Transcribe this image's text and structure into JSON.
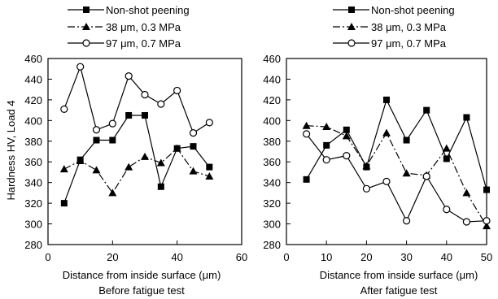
{
  "legend": [
    {
      "name": "Non-shot peening",
      "marker": "square-filled",
      "dash": "solid"
    },
    {
      "name": "38 μm,  0.3 MPa",
      "marker": "triangle-filled",
      "dash": "dashdot"
    },
    {
      "name": "97 μm,   0.7 MPa",
      "marker": "circle-open",
      "dash": "solid"
    }
  ],
  "y_axis_label": "Hardness  HV, Load  4",
  "chart_data": [
    {
      "type": "line",
      "caption": "Before fatigue test",
      "xlabel": "Distance from inside surface (μm)",
      "ylabel": "Hardness  HV, Load  4",
      "xlim": [
        0,
        60
      ],
      "ylim": [
        280,
        460
      ],
      "x_ticks": [
        0,
        20,
        40,
        60
      ],
      "y_ticks": [
        280,
        300,
        320,
        340,
        360,
        380,
        400,
        420,
        440,
        460
      ],
      "grid": false,
      "legend_position": "top",
      "series": [
        {
          "name": "Non-shot peening",
          "x": [
            5,
            10,
            15,
            20,
            25,
            30,
            35,
            40,
            45,
            50
          ],
          "y": [
            320,
            362,
            381,
            381,
            405,
            405,
            336,
            373,
            375,
            355
          ]
        },
        {
          "name": "38 μm,  0.3 MPa",
          "x": [
            5,
            10,
            15,
            20,
            25,
            30,
            35,
            40,
            45,
            50
          ],
          "y": [
            353,
            361,
            352,
            330,
            355,
            365,
            359,
            373,
            351,
            346
          ]
        },
        {
          "name": "97 μm,   0.7 MPa",
          "x": [
            5,
            10,
            15,
            20,
            25,
            30,
            35,
            40,
            45,
            50
          ],
          "y": [
            411,
            452,
            391,
            397,
            443,
            425,
            416,
            429,
            388,
            398
          ]
        }
      ]
    },
    {
      "type": "line",
      "caption": "After fatigue test",
      "xlabel": "Distance from inside surface (μm)",
      "ylabel": "",
      "xlim": [
        0,
        50
      ],
      "ylim": [
        280,
        460
      ],
      "x_ticks": [
        0,
        10,
        20,
        30,
        40,
        50
      ],
      "y_ticks": [
        280,
        300,
        320,
        340,
        360,
        380,
        400,
        420,
        440,
        460
      ],
      "grid": false,
      "legend_position": "top",
      "series": [
        {
          "name": "Non-shot peening",
          "x": [
            5,
            10,
            15,
            20,
            25,
            30,
            35,
            40,
            45,
            50
          ],
          "y": [
            343,
            376,
            391,
            355,
            420,
            381,
            410,
            363,
            403,
            333
          ]
        },
        {
          "name": "38 μm,  0.3 MPa",
          "x": [
            5,
            10,
            15,
            20,
            25,
            30,
            35,
            40,
            45,
            50
          ],
          "y": [
            395,
            394,
            385,
            356,
            388,
            349,
            347,
            373,
            330,
            298
          ]
        },
        {
          "name": "97 μm,   0.7 MPa",
          "x": [
            5,
            10,
            15,
            20,
            25,
            30,
            35,
            40,
            45,
            50
          ],
          "y": [
            387,
            362,
            366,
            334,
            341,
            303,
            346,
            314,
            302,
            303
          ]
        }
      ]
    }
  ]
}
